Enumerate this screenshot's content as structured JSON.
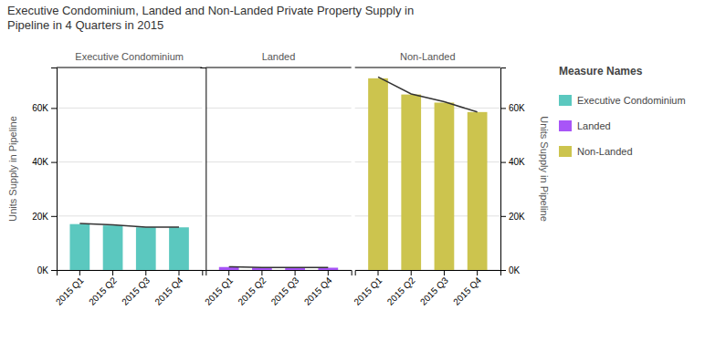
{
  "title": [
    "Executive Condominium, Landed and Non-Landed Private Property  Supply in",
    "Pipeline in 4 Quarters in 2015"
  ],
  "legend_title": "Measure Names",
  "legend": "right",
  "chart_data": [
    {
      "type": "bar",
      "title": "Executive Condominium",
      "categories": [
        "2015 Q1",
        "2015 Q2",
        "2015 Q3",
        "2015 Q4"
      ],
      "series": [
        {
          "name": "Executive Condominium",
          "type": "bar",
          "color": "#5bc8bf",
          "values": [
            17000,
            16500,
            15800,
            15800
          ]
        },
        {
          "type": "line",
          "color": "#333333",
          "values": [
            17200,
            16700,
            15900,
            15900
          ]
        }
      ],
      "ylabel": "Units Supply in Pipeline",
      "ylim": [
        0,
        75000
      ],
      "yticks": [
        {
          "value": 0,
          "label": "0K"
        },
        {
          "value": 20000,
          "label": "20K"
        },
        {
          "value": 40000,
          "label": "40K"
        },
        {
          "value": 60000,
          "label": "60K"
        }
      ],
      "grid": true
    },
    {
      "type": "bar",
      "title": "Landed",
      "categories": [
        "2015 Q1",
        "2015 Q2",
        "2015 Q3",
        "2015 Q4"
      ],
      "series": [
        {
          "name": "Landed",
          "type": "bar",
          "color": "#a855f7",
          "values": [
            1100,
            900,
            900,
            850
          ]
        },
        {
          "type": "line",
          "color": "#333333",
          "values": [
            1200,
            950,
            950,
            920
          ]
        }
      ],
      "ylim": [
        0,
        75000
      ],
      "yticks": [
        0,
        20000,
        40000,
        60000
      ],
      "tick_labels": "x",
      "grid": true
    },
    {
      "type": "bar",
      "title": "Non-Landed",
      "categories": [
        "2015 Q1",
        "2015 Q2",
        "2015 Q3",
        "2015 Q4"
      ],
      "series": [
        {
          "name": "Non-Landed",
          "type": "bar",
          "color": "#ccc44e",
          "values": [
            71000,
            65000,
            62000,
            58500
          ]
        },
        {
          "type": "line",
          "color": "#333333",
          "values": [
            71500,
            65200,
            62300,
            58500
          ]
        }
      ],
      "ylabel": "Units Supply in Pipeline",
      "ylim": [
        0,
        75000
      ],
      "yticks": [
        {
          "value": 0,
          "label": "0K"
        },
        {
          "value": 20000,
          "label": "20K"
        },
        {
          "value": 40000,
          "label": "40K"
        },
        {
          "value": 60000,
          "label": "60K"
        }
      ],
      "grid": true
    }
  ]
}
